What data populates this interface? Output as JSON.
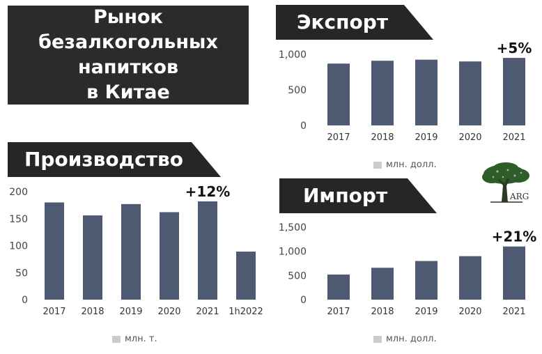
{
  "header": {
    "title_lines": [
      "Рынок",
      "безалкогольных",
      "напитков",
      "в Китае"
    ]
  },
  "colors": {
    "bar": "#4d5a72",
    "tab": "#262626",
    "legend_swatch": "#cccccc"
  },
  "chart_data": [
    {
      "id": "export",
      "type": "bar",
      "title": "Экспорт",
      "categories": [
        "2017",
        "2018",
        "2019",
        "2020",
        "2021"
      ],
      "values": [
        870,
        910,
        925,
        900,
        950
      ],
      "yticks": [
        0,
        500,
        1000
      ],
      "ytick_labels": [
        "0",
        "500",
        "1,000"
      ],
      "ylim": [
        0,
        1000
      ],
      "annotation": {
        "text": "+5%",
        "category": "2021"
      },
      "legend": "млн. долл.",
      "grid": false
    },
    {
      "id": "production",
      "type": "bar",
      "title": "Производство",
      "categories": [
        "2017",
        "2018",
        "2019",
        "2020",
        "2021",
        "1h2022"
      ],
      "values": [
        180,
        156,
        177,
        162,
        182,
        89
      ],
      "yticks": [
        0,
        50,
        100,
        150,
        200
      ],
      "ytick_labels": [
        "0",
        "50",
        "100",
        "150",
        "200"
      ],
      "ylim": [
        0,
        200
      ],
      "annotation": {
        "text": "+12%",
        "category": "2021"
      },
      "legend": "млн. т.",
      "grid": false
    },
    {
      "id": "import",
      "type": "bar",
      "title": "Импорт",
      "categories": [
        "2017",
        "2018",
        "2019",
        "2020",
        "2021"
      ],
      "values": [
        520,
        660,
        800,
        900,
        1100
      ],
      "yticks": [
        0,
        500,
        1000,
        1500
      ],
      "ytick_labels": [
        "0",
        "500",
        "1,000",
        "1,500"
      ],
      "ylim": [
        0,
        1500
      ],
      "annotation": {
        "text": "+21%",
        "category": "2021"
      },
      "legend": "млн. долл.",
      "grid": false
    }
  ],
  "logo": {
    "name": "tree-logo",
    "text": "ARG"
  }
}
